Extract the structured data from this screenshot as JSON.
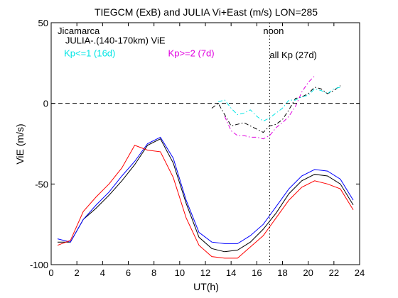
{
  "chart_data": {
    "type": "line",
    "title": "TIEGCM (ExB) and JULIA Vi+East (m/s) LON=285",
    "xlabel": "UT(h)",
    "ylabel": "ViE (m/s)",
    "xlim": [
      0,
      24
    ],
    "ylim": [
      -100,
      50
    ],
    "xticks": [
      0,
      2,
      4,
      6,
      8,
      10,
      12,
      14,
      16,
      18,
      20,
      22,
      24
    ],
    "yticks": [
      -100,
      -50,
      0,
      50
    ],
    "grid": false,
    "reference_lines": [
      {
        "orientation": "horizontal",
        "value": 0,
        "style": "dashed",
        "color": "#000000"
      },
      {
        "orientation": "vertical",
        "value": 17,
        "style": "dotted",
        "color": "#000000"
      }
    ],
    "annotations": [
      {
        "text": "Jicamarca",
        "color": "#000000",
        "x": 0.5,
        "y": 43
      },
      {
        "text": "JULIA-.(140-170km) ViE",
        "color": "#000000",
        "x": 1.1,
        "y": 37
      },
      {
        "text": "Kp<=1 (16d)",
        "color": "#00e5e5",
        "x": 1.0,
        "y": 29
      },
      {
        "text": "Kp>=2 (7d)",
        "color": "#e000e0",
        "x": 9.1,
        "y": 29
      },
      {
        "text": "noon",
        "color": "#000000",
        "x": 16.5,
        "y": 43
      },
      {
        "text": "all Kp (27d)",
        "color": "#000000",
        "x": 17.0,
        "y": 28
      }
    ],
    "series": [
      {
        "color": "#000000",
        "dash": "solid",
        "x": [
          0.5,
          1.5,
          2.5,
          3.5,
          4.5,
          5.5,
          6.5,
          7.5,
          8.5,
          9.5,
          10.5,
          11.5,
          12.5,
          13.5,
          14.5,
          15.5,
          16.5,
          17.5,
          18.5,
          19.5,
          20.5,
          21.5,
          22.5,
          23.5
        ],
        "values": [
          -86,
          -86,
          -72,
          -65,
          -57,
          -48,
          -38,
          -26,
          -22,
          -37,
          -62,
          -83,
          -90,
          -92,
          -91,
          -86,
          -78,
          -68,
          -56,
          -48,
          -44,
          -45,
          -50,
          -63
        ]
      },
      {
        "color": "#0000ff",
        "dash": "solid",
        "x": [
          0.5,
          1.5,
          2.5,
          3.5,
          4.5,
          5.5,
          6.5,
          7.5,
          8.5,
          9.5,
          10.5,
          11.5,
          12.5,
          13.5,
          14.5,
          15.5,
          16.5,
          17.5,
          18.5,
          19.5,
          20.5,
          21.5,
          22.5,
          23.5
        ],
        "values": [
          -84,
          -86,
          -72,
          -63,
          -55,
          -45,
          -36,
          -25,
          -21,
          -34,
          -60,
          -80,
          -86,
          -87,
          -87,
          -82,
          -75,
          -64,
          -53,
          -45,
          -41,
          -42,
          -47,
          -60
        ]
      },
      {
        "color": "#ff0000",
        "dash": "solid",
        "x": [
          0.5,
          1.5,
          2.5,
          3.5,
          4.5,
          5.5,
          6.5,
          7.5,
          8.5,
          9.5,
          10.5,
          11.5,
          12.5,
          13.5,
          14.5,
          15.5,
          16.5,
          17.5,
          18.5,
          19.5,
          20.5,
          21.5,
          22.5,
          23.5
        ],
        "values": [
          -88,
          -85,
          -67,
          -58,
          -50,
          -40,
          -26,
          -29,
          -30,
          -46,
          -71,
          -88,
          -95,
          -96,
          -96,
          -89,
          -82,
          -71,
          -60,
          -52,
          -48,
          -50,
          -53,
          -66
        ]
      },
      {
        "color": "#000000",
        "dash": "dashdot",
        "x": [
          12.5,
          13.0,
          13.5,
          14.0,
          14.5,
          15.0,
          15.5,
          16.0,
          16.5,
          17.0,
          17.5,
          18.0,
          18.5,
          19.0,
          19.5,
          20.0,
          20.5,
          21.0,
          21.5,
          22.0,
          22.5
        ],
        "values": [
          -3,
          0,
          -7,
          -14,
          -13,
          -12,
          -14,
          -16,
          -18,
          -14,
          -13,
          -10,
          -4,
          3,
          4,
          6,
          10,
          9,
          6,
          8,
          11
        ]
      },
      {
        "color": "#00e5e5",
        "dash": "dashdot",
        "x": [
          13.0,
          13.5,
          14.0,
          14.5,
          15.0,
          15.5,
          16.0,
          16.5,
          17.0,
          17.5,
          18.0,
          18.5,
          19.0,
          19.5,
          20.0,
          20.5,
          21.0,
          21.5,
          22.0,
          22.5
        ],
        "values": [
          1,
          2,
          -3,
          -7,
          -6,
          -4,
          -8,
          -11,
          -9,
          -6,
          -3,
          2,
          2,
          4,
          5,
          9,
          8,
          6,
          9,
          10
        ]
      },
      {
        "color": "#e000e0",
        "dash": "dashdot",
        "x": [
          13.5,
          14.0,
          14.5,
          15.0,
          15.5,
          16.0,
          16.5,
          17.0,
          17.5,
          18.0,
          18.5,
          19.0,
          19.5,
          20.0,
          20.5
        ],
        "values": [
          -8,
          -17,
          -20,
          -20,
          -21,
          -21,
          -22,
          -20,
          -15,
          -12,
          -8,
          -2,
          7,
          13,
          17
        ]
      }
    ]
  }
}
